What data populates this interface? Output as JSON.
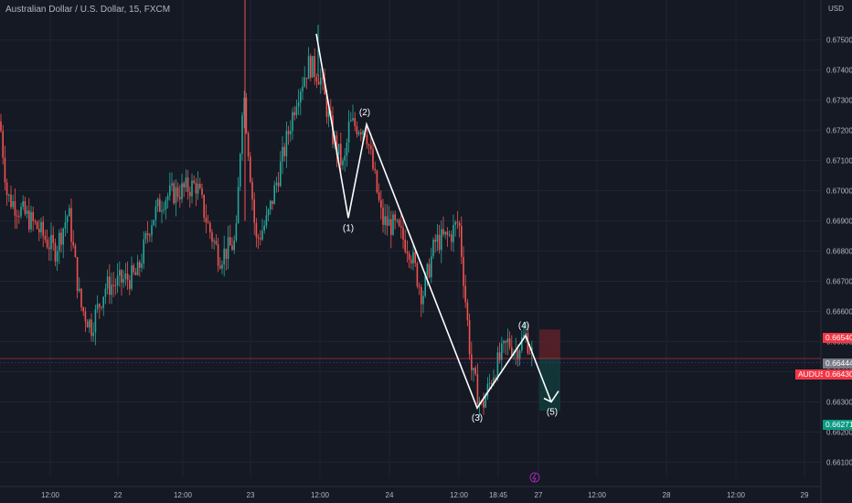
{
  "header": {
    "title": "Australian Dollar / U.S. Dollar, 15, FXCM"
  },
  "colors": {
    "background": "#151924",
    "grid": "#1f2433",
    "up": "#26a69a",
    "down": "#ef5350",
    "text": "#b2b5be",
    "wave": "#ffffff",
    "sell_zone": "#5c2129",
    "target_zone": "#123a3a",
    "price_tag": "#f23645",
    "ask_tag": "#787b86",
    "target_tag": "#089981"
  },
  "axis": {
    "currency": "USD",
    "price_ticks": [
      "0.67500",
      "0.67400",
      "0.67300",
      "0.67200",
      "0.67100",
      "0.67000",
      "0.66900",
      "0.66800",
      "0.66700",
      "0.66600",
      "0.66500",
      "0.66400",
      "0.66300",
      "0.66200",
      "0.66100"
    ],
    "time_ticks": [
      "12:00",
      "22",
      "12:00",
      "23",
      "12:00",
      "24",
      "12:00",
      "18:45",
      "27",
      "12:00",
      "28",
      "12:00",
      "29"
    ]
  },
  "tags": {
    "stop": "0.66540",
    "ask": "0.66444",
    "symbol": "AUDUSD",
    "last": "0.66430",
    "target": "0.66271"
  },
  "chart_data": {
    "type": "candlestick",
    "symbol": "AUDUSD",
    "interval": "15",
    "ylim": [
      0.6605,
      0.6762
    ],
    "last_price": 0.6643,
    "wave_labels": [
      "(1)",
      "(2)",
      "(3)",
      "(4)",
      "(5)"
    ],
    "waves": [
      {
        "label": "",
        "price": 0.6752
      },
      {
        "label": "(1)",
        "price": 0.6691
      },
      {
        "label": "(2)",
        "price": 0.6722
      },
      {
        "label": "(3)",
        "price": 0.6628
      },
      {
        "label": "(4)",
        "price": 0.6652
      },
      {
        "label": "(5)",
        "price": 0.663
      }
    ],
    "position": {
      "entry": 0.66444,
      "stop": 0.6654,
      "target": 0.66271
    }
  }
}
